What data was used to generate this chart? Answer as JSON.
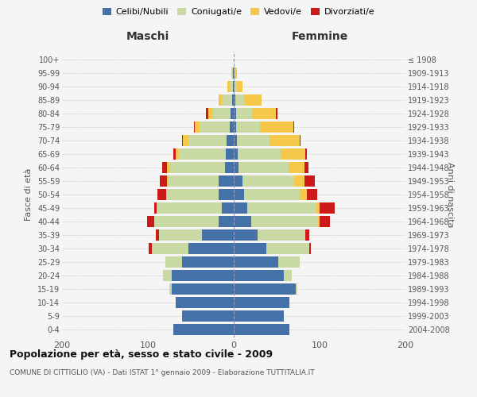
{
  "age_groups": [
    "0-4",
    "5-9",
    "10-14",
    "15-19",
    "20-24",
    "25-29",
    "30-34",
    "35-39",
    "40-44",
    "45-49",
    "50-54",
    "55-59",
    "60-64",
    "65-69",
    "70-74",
    "75-79",
    "80-84",
    "85-89",
    "90-94",
    "95-99",
    "100+"
  ],
  "birth_years": [
    "2004-2008",
    "1999-2003",
    "1994-1998",
    "1989-1993",
    "1984-1988",
    "1979-1983",
    "1974-1978",
    "1969-1973",
    "1964-1968",
    "1959-1963",
    "1954-1958",
    "1949-1953",
    "1944-1948",
    "1939-1943",
    "1934-1938",
    "1929-1933",
    "1924-1928",
    "1919-1923",
    "1914-1918",
    "1909-1913",
    "≤ 1908"
  ],
  "males": {
    "celibi": [
      70,
      60,
      68,
      72,
      72,
      60,
      53,
      37,
      18,
      14,
      18,
      18,
      10,
      9,
      8,
      5,
      4,
      2,
      1,
      1,
      0
    ],
    "coniugati": [
      0,
      0,
      0,
      3,
      10,
      20,
      42,
      50,
      75,
      75,
      60,
      58,
      65,
      55,
      45,
      35,
      20,
      12,
      4,
      2,
      0
    ],
    "vedovi": [
      0,
      0,
      0,
      0,
      0,
      0,
      0,
      0,
      0,
      1,
      1,
      2,
      3,
      4,
      6,
      5,
      6,
      4,
      2,
      0,
      0
    ],
    "divorziati": [
      0,
      0,
      0,
      0,
      0,
      0,
      4,
      4,
      8,
      3,
      10,
      8,
      5,
      2,
      1,
      1,
      2,
      0,
      0,
      0,
      0
    ]
  },
  "females": {
    "nubili": [
      65,
      58,
      65,
      72,
      58,
      52,
      38,
      28,
      20,
      16,
      12,
      10,
      6,
      5,
      4,
      3,
      3,
      2,
      1,
      1,
      0
    ],
    "coniugate": [
      0,
      0,
      0,
      2,
      10,
      25,
      50,
      55,
      78,
      80,
      65,
      60,
      58,
      50,
      38,
      28,
      18,
      10,
      3,
      1,
      0
    ],
    "vedove": [
      0,
      0,
      0,
      0,
      0,
      0,
      0,
      0,
      2,
      4,
      8,
      12,
      18,
      28,
      35,
      38,
      28,
      20,
      6,
      2,
      0
    ],
    "divorziate": [
      0,
      0,
      0,
      0,
      0,
      0,
      2,
      5,
      12,
      18,
      12,
      12,
      5,
      2,
      1,
      1,
      2,
      0,
      0,
      0,
      0
    ]
  },
  "colors": {
    "celibi_nubili": "#4472a8",
    "coniugati": "#c8d9a4",
    "vedovi": "#f5c84a",
    "divorziati": "#cc1a1a"
  },
  "title": "Popolazione per età, sesso e stato civile - 2009",
  "subtitle": "COMUNE DI CITTIGLIO (VA) - Dati ISTAT 1° gennaio 2009 - Elaborazione TUTTITALIA.IT",
  "xlabel_left": "Maschi",
  "xlabel_right": "Femmine",
  "ylabel_left": "Fasce di età",
  "ylabel_right": "Anni di nascita",
  "xlim": 200,
  "bg_color": "#f5f5f5",
  "grid_color": "#cccccc"
}
